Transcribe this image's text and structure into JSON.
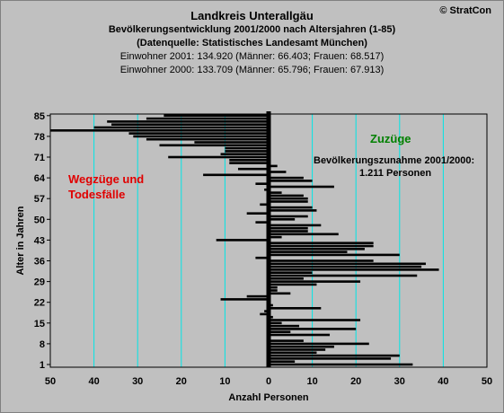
{
  "header": {
    "title": "Landkreis Unterallgäu",
    "subtitle1": "Bevölkerungsentwicklung 2001/2000 nach Altersjahren (1-85)",
    "subtitle2": "(Datenquelle: Statistisches Landesamt München)",
    "info1": "Einwohner 2001: 134.920  (Männer: 66.403; Frauen: 68.517)",
    "info2": "Einwohner 2000: 133.709  (Männer: 65.796; Frauen: 67.913)",
    "copyright": "© StratCon"
  },
  "chart_data": {
    "type": "bar",
    "orientation": "horizontal",
    "xlabel": "Anzahl Personen",
    "ylabel": "Alter in Jahren",
    "xlim": [
      -50,
      50
    ],
    "x_tick_values": [
      -50,
      -40,
      -30,
      -20,
      -10,
      0,
      10,
      20,
      30,
      40,
      50
    ],
    "x_tick_labels": [
      "50",
      "40",
      "30",
      "20",
      "10",
      "0",
      "10",
      "20",
      "30",
      "40",
      "50"
    ],
    "y_ticks": [
      1,
      8,
      15,
      22,
      29,
      36,
      43,
      50,
      57,
      64,
      71,
      78,
      85
    ],
    "ages": [
      1,
      2,
      3,
      4,
      5,
      6,
      7,
      8,
      9,
      10,
      11,
      12,
      13,
      14,
      15,
      16,
      17,
      18,
      19,
      20,
      21,
      22,
      23,
      24,
      25,
      26,
      27,
      28,
      29,
      30,
      31,
      32,
      33,
      34,
      35,
      36,
      37,
      38,
      39,
      40,
      41,
      42,
      43,
      44,
      45,
      46,
      47,
      48,
      49,
      50,
      51,
      52,
      53,
      54,
      55,
      56,
      57,
      58,
      59,
      60,
      61,
      62,
      63,
      64,
      65,
      66,
      67,
      68,
      69,
      70,
      71,
      72,
      73,
      74,
      75,
      76,
      77,
      78,
      79,
      80,
      81,
      82,
      83,
      84,
      85
    ],
    "values": [
      33,
      6,
      28,
      30,
      11,
      13,
      15,
      23,
      8,
      0,
      14,
      5,
      20,
      7,
      3,
      21,
      1,
      -2,
      -1,
      12,
      1,
      0,
      -11,
      -5,
      5,
      2,
      2,
      11,
      21,
      8,
      34,
      10,
      39,
      35,
      36,
      24,
      -3,
      30,
      18,
      22,
      24,
      24,
      -12,
      3,
      16,
      9,
      9,
      12,
      -3,
      6,
      9,
      -5,
      11,
      10,
      -2,
      9,
      9,
      8,
      3,
      -1,
      15,
      -3,
      10,
      8,
      -15,
      4,
      -7,
      2,
      -9,
      -9,
      -23,
      -11,
      -10,
      -10,
      -25,
      -17,
      -28,
      -31,
      -32,
      -50,
      -40,
      -36,
      -37,
      -28,
      -24
    ],
    "annotations": {
      "left": "Wegzüge und",
      "left2": "Todesfälle",
      "right": "Zuzüge",
      "summary1": "Bevölkerungszunahme 2001/2000:",
      "summary2": "1.211 Personen"
    },
    "colors": {
      "background": "#c0c0c0",
      "gridline": "#00e5e5",
      "bar": "#000000",
      "left_annotation": "#e00000",
      "right_annotation": "#008000"
    }
  }
}
